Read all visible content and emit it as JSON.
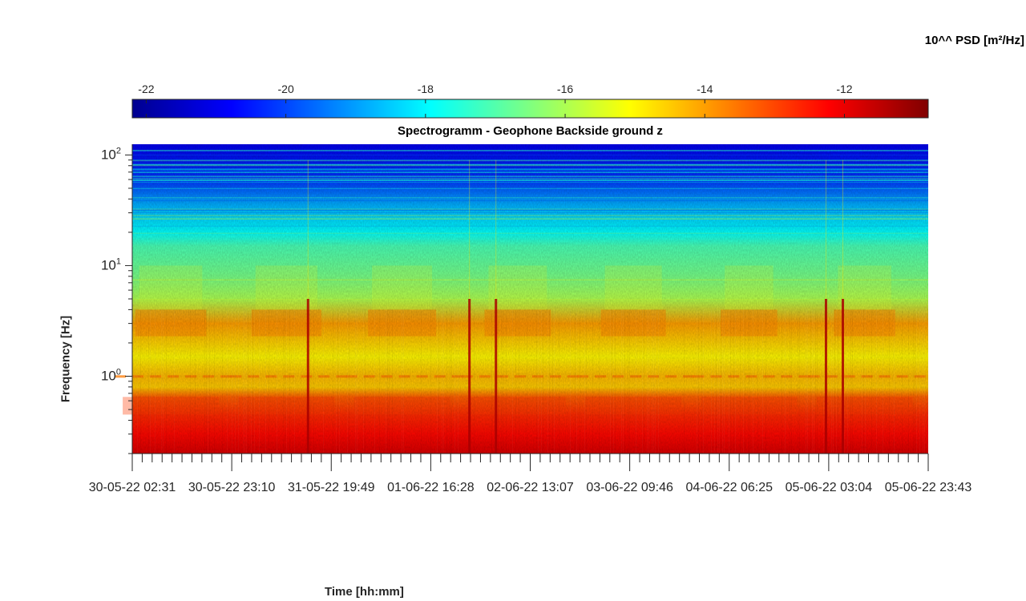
{
  "chart_data": {
    "type": "heatmap",
    "title": "Spectrogramm - Geophone Backside ground z",
    "xlabel": "Time [hh:mm]",
    "ylabel": "Frequency [Hz]",
    "y_scale": "log",
    "ylim": [
      0.2,
      125
    ],
    "y_ticks": [
      {
        "value": 1,
        "base": "10",
        "exp": "0"
      },
      {
        "value": 10,
        "base": "10",
        "exp": "1"
      },
      {
        "value": 100,
        "base": "10",
        "exp": "2"
      }
    ],
    "x_ticks": [
      "30-05-22 02:31",
      "30-05-22 23:10",
      "31-05-22 19:49",
      "01-06-22 16:28",
      "02-06-22 13:07",
      "03-06-22 09:46",
      "04-06-22 06:25",
      "05-06-22 03:04",
      "05-06-22 23:43"
    ],
    "colorbar": {
      "label": "10^^ PSD [m²/Hz]",
      "colormap": "jet",
      "range": [
        -22.2,
        -10.8
      ],
      "ticks": [
        -22,
        -20,
        -18,
        -16,
        -14,
        -12
      ]
    },
    "psd_profile": [
      {
        "freq": 0.2,
        "log_psd": -11.8
      },
      {
        "freq": 0.3,
        "log_psd": -12.3
      },
      {
        "freq": 0.45,
        "log_psd": -12.7
      },
      {
        "freq": 0.65,
        "log_psd": -13.3
      },
      {
        "freq": 0.8,
        "log_psd": -14.5
      },
      {
        "freq": 1.0,
        "log_psd": -14.3
      },
      {
        "freq": 1.5,
        "log_psd": -15.0
      },
      {
        "freq": 3.0,
        "log_psd": -14.0
      },
      {
        "freq": 5.0,
        "log_psd": -16.0
      },
      {
        "freq": 8.0,
        "log_psd": -16.6
      },
      {
        "freq": 15.0,
        "log_psd": -17.1
      },
      {
        "freq": 20.0,
        "log_psd": -17.9
      },
      {
        "freq": 35.0,
        "log_psd": -18.8
      },
      {
        "freq": 60.0,
        "log_psd": -20.2
      },
      {
        "freq": 125.0,
        "log_psd": -21.0
      }
    ],
    "transient_events": [
      "31-05-22 15:00",
      "02-06-22 00:30",
      "02-06-22 06:00",
      "05-06-22 02:30",
      "05-06-22 06:00"
    ]
  }
}
